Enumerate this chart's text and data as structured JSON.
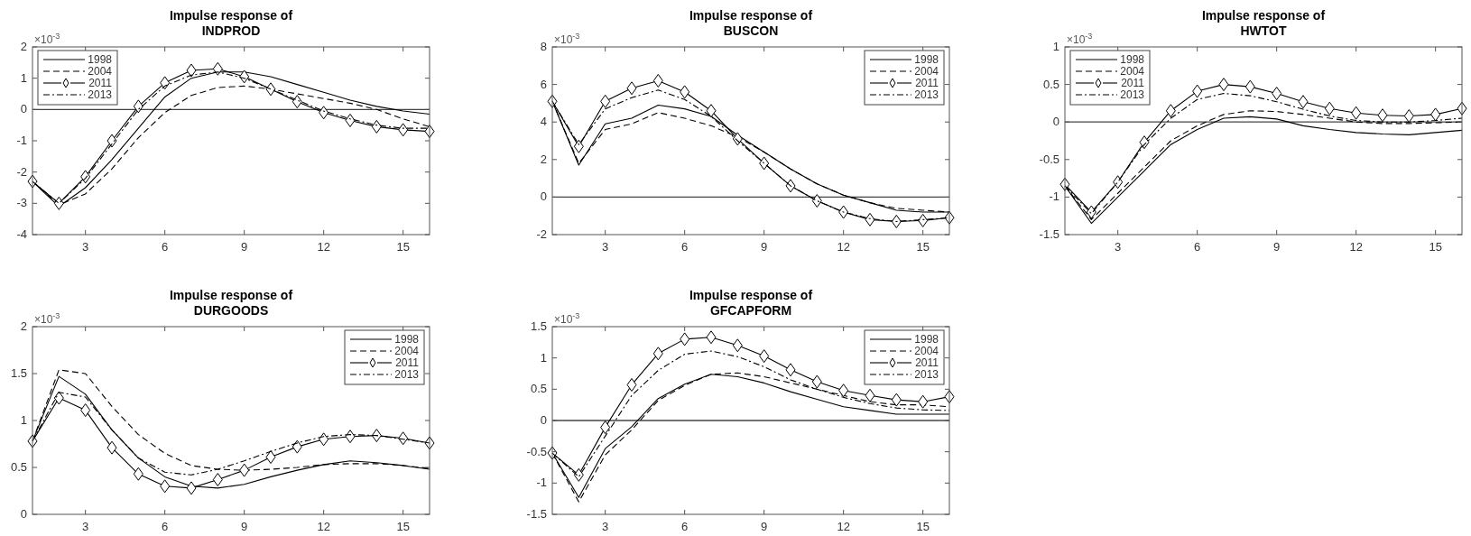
{
  "chart_data": [
    {
      "type": "line",
      "title": "Impulse response of\nINDPROD",
      "annotations": [
        "×10$^{-3}$"
      ],
      "x": [
        1,
        2,
        3,
        4,
        5,
        6,
        7,
        8,
        9,
        10,
        11,
        12,
        13,
        14,
        15,
        16
      ],
      "xlim": [
        1,
        16
      ],
      "xticks": [
        3,
        6,
        9,
        12,
        15
      ],
      "ylim": [
        -4,
        2
      ],
      "yticks": [
        -4,
        -3,
        -2,
        -1,
        0,
        1,
        2
      ],
      "ref_lines": [
        {
          "axis": "y",
          "value": 0,
          "color": "#444444"
        }
      ],
      "legend": "top left",
      "series": [
        {
          "name": "1998",
          "color": "#000000",
          "line_style": "solid",
          "marker": "none",
          "values": [
            -2.3,
            -3.1,
            -2.5,
            -1.6,
            -0.6,
            0.4,
            1.0,
            1.2,
            1.2,
            1.05,
            0.8,
            0.55,
            0.3,
            0.1,
            -0.05,
            -0.15
          ]
        },
        {
          "name": "2004",
          "color": "#000000",
          "line_style": "dashed",
          "marker": "none",
          "values": [
            -2.3,
            -3.05,
            -2.7,
            -1.9,
            -0.9,
            -0.1,
            0.45,
            0.7,
            0.75,
            0.65,
            0.5,
            0.35,
            0.2,
            0.0,
            -0.3,
            -0.55
          ]
        },
        {
          "name": "2011",
          "color": "#000000",
          "line_style": "solid",
          "marker": "diamond",
          "values": [
            -2.3,
            -3.0,
            -2.15,
            -1.0,
            0.1,
            0.85,
            1.25,
            1.3,
            1.05,
            0.65,
            0.25,
            -0.1,
            -0.35,
            -0.55,
            -0.65,
            -0.7
          ]
        },
        {
          "name": "2013",
          "color": "#000000",
          "line_style": "dashdot",
          "marker": "none",
          "values": [
            -2.3,
            -3.0,
            -2.2,
            -1.1,
            0.0,
            0.75,
            1.1,
            1.2,
            1.0,
            0.65,
            0.3,
            -0.05,
            -0.3,
            -0.5,
            -0.6,
            -0.6
          ]
        }
      ]
    },
    {
      "type": "line",
      "title": "Impulse response of\nBUSCON",
      "annotations": [
        "×10$^{-3}$"
      ],
      "x": [
        1,
        2,
        3,
        4,
        5,
        6,
        7,
        8,
        9,
        10,
        11,
        12,
        13,
        14,
        15,
        16
      ],
      "xlim": [
        1,
        16
      ],
      "xticks": [
        3,
        6,
        9,
        12,
        15
      ],
      "ylim": [
        -2,
        8
      ],
      "yticks": [
        -2,
        0,
        2,
        4,
        6,
        8
      ],
      "ref_lines": [
        {
          "axis": "y",
          "value": 0,
          "color": "#444444"
        }
      ],
      "legend": "top right",
      "series": [
        {
          "name": "1998",
          "color": "#000000",
          "line_style": "solid",
          "marker": "none",
          "values": [
            5.1,
            1.7,
            3.9,
            4.2,
            4.9,
            4.7,
            4.3,
            3.3,
            2.4,
            1.5,
            0.7,
            0.1,
            -0.3,
            -0.7,
            -0.8,
            -0.8
          ]
        },
        {
          "name": "2004",
          "color": "#000000",
          "line_style": "dashed",
          "marker": "none",
          "values": [
            5.1,
            1.8,
            3.6,
            3.9,
            4.5,
            4.2,
            3.8,
            3.2,
            2.4,
            1.5,
            0.7,
            0.1,
            -0.3,
            -0.6,
            -0.7,
            -0.8
          ]
        },
        {
          "name": "2011",
          "color": "#000000",
          "line_style": "solid",
          "marker": "diamond",
          "values": [
            5.1,
            2.7,
            5.1,
            5.8,
            6.2,
            5.6,
            4.6,
            3.1,
            1.8,
            0.6,
            -0.2,
            -0.8,
            -1.2,
            -1.3,
            -1.25,
            -1.1
          ]
        },
        {
          "name": "2013",
          "color": "#000000",
          "line_style": "dashdot",
          "marker": "none",
          "values": [
            5.1,
            2.8,
            4.7,
            5.3,
            5.7,
            5.2,
            4.3,
            3.0,
            1.8,
            0.6,
            -0.2,
            -0.8,
            -1.15,
            -1.3,
            -1.2,
            -1.1
          ]
        }
      ]
    },
    {
      "type": "line",
      "title": "Impulse response of\nHWTOT",
      "annotations": [
        "×10$^{-3}$"
      ],
      "x": [
        1,
        2,
        3,
        4,
        5,
        6,
        7,
        8,
        9,
        10,
        11,
        12,
        13,
        14,
        15,
        16
      ],
      "xlim": [
        1,
        16
      ],
      "xticks": [
        3,
        6,
        9,
        12,
        15
      ],
      "ylim": [
        -1.5,
        1
      ],
      "yticks": [
        -1.5,
        -1,
        -0.5,
        0,
        0.5,
        1
      ],
      "ref_lines": [
        {
          "axis": "y",
          "value": 0,
          "color": "#444444"
        }
      ],
      "legend": "top left",
      "series": [
        {
          "name": "1998",
          "color": "#000000",
          "line_style": "solid",
          "marker": "none",
          "values": [
            -0.85,
            -1.35,
            -1.0,
            -0.65,
            -0.3,
            -0.1,
            0.05,
            0.07,
            0.04,
            -0.05,
            -0.1,
            -0.14,
            -0.16,
            -0.17,
            -0.14,
            -0.11
          ]
        },
        {
          "name": "2004",
          "color": "#000000",
          "line_style": "dashed",
          "marker": "none",
          "values": [
            -0.85,
            -1.3,
            -0.95,
            -0.6,
            -0.25,
            -0.05,
            0.1,
            0.15,
            0.14,
            0.1,
            0.05,
            0.0,
            -0.02,
            -0.02,
            -0.01,
            0.0
          ]
        },
        {
          "name": "2011",
          "color": "#000000",
          "line_style": "solid",
          "marker": "diamond",
          "values": [
            -0.83,
            -1.2,
            -0.8,
            -0.27,
            0.15,
            0.41,
            0.5,
            0.47,
            0.38,
            0.27,
            0.18,
            0.12,
            0.09,
            0.08,
            0.1,
            0.18
          ]
        },
        {
          "name": "2013",
          "color": "#000000",
          "line_style": "dashdot",
          "marker": "none",
          "values": [
            -0.85,
            -1.22,
            -0.8,
            -0.3,
            0.05,
            0.3,
            0.38,
            0.35,
            0.27,
            0.17,
            0.08,
            0.02,
            0.0,
            0.0,
            0.02,
            0.05
          ]
        }
      ]
    },
    {
      "type": "line",
      "title": "Impulse response of\nDURGOODS",
      "annotations": [
        "×10$^{-3}$"
      ],
      "x": [
        1,
        2,
        3,
        4,
        5,
        6,
        7,
        8,
        9,
        10,
        11,
        12,
        13,
        14,
        15,
        16
      ],
      "xlim": [
        1,
        16
      ],
      "xticks": [
        3,
        6,
        9,
        12,
        15
      ],
      "ylim": [
        0,
        2
      ],
      "yticks": [
        0,
        0.5,
        1,
        1.5,
        2
      ],
      "legend": "top right",
      "series": [
        {
          "name": "1998",
          "color": "#000000",
          "line_style": "solid",
          "marker": "none",
          "values": [
            0.78,
            1.47,
            1.28,
            0.9,
            0.6,
            0.4,
            0.3,
            0.28,
            0.32,
            0.4,
            0.47,
            0.53,
            0.57,
            0.55,
            0.52,
            0.48
          ]
        },
        {
          "name": "2004",
          "color": "#000000",
          "line_style": "dashed",
          "marker": "none",
          "values": [
            0.78,
            1.54,
            1.5,
            1.15,
            0.85,
            0.65,
            0.52,
            0.48,
            0.47,
            0.48,
            0.5,
            0.53,
            0.54,
            0.54,
            0.52,
            0.49
          ]
        },
        {
          "name": "2011",
          "color": "#000000",
          "line_style": "solid",
          "marker": "diamond",
          "values": [
            0.78,
            1.24,
            1.11,
            0.71,
            0.43,
            0.3,
            0.28,
            0.37,
            0.47,
            0.61,
            0.72,
            0.8,
            0.83,
            0.84,
            0.81,
            0.76
          ]
        },
        {
          "name": "2013",
          "color": "#000000",
          "line_style": "dashdot",
          "marker": "none",
          "values": [
            0.78,
            1.3,
            1.25,
            0.9,
            0.6,
            0.45,
            0.42,
            0.48,
            0.57,
            0.67,
            0.76,
            0.83,
            0.85,
            0.84,
            0.8,
            0.76
          ]
        }
      ]
    },
    {
      "type": "line",
      "title": "Impulse response of\nGFCAPFORM",
      "annotations": [
        "×10$^{-3}$"
      ],
      "x": [
        1,
        2,
        3,
        4,
        5,
        6,
        7,
        8,
        9,
        10,
        11,
        12,
        13,
        14,
        15,
        16
      ],
      "xlim": [
        1,
        16
      ],
      "xticks": [
        3,
        6,
        9,
        12,
        15
      ],
      "ylim": [
        -1.5,
        1.5
      ],
      "yticks": [
        -1.5,
        -1,
        -0.5,
        0,
        0.5,
        1,
        1.5
      ],
      "ref_lines": [
        {
          "axis": "y",
          "value": 0,
          "color": "#444444"
        }
      ],
      "legend": "top right",
      "series": [
        {
          "name": "1998",
          "color": "#000000",
          "line_style": "solid",
          "marker": "none",
          "values": [
            -0.52,
            -1.23,
            -0.45,
            -0.1,
            0.35,
            0.58,
            0.74,
            0.7,
            0.6,
            0.46,
            0.34,
            0.22,
            0.16,
            0.1,
            0.1,
            0.1
          ]
        },
        {
          "name": "2004",
          "color": "#000000",
          "line_style": "dashed",
          "marker": "none",
          "values": [
            -0.52,
            -1.3,
            -0.55,
            -0.15,
            0.32,
            0.56,
            0.74,
            0.76,
            0.7,
            0.6,
            0.5,
            0.4,
            0.3,
            0.25,
            0.25,
            0.22
          ]
        },
        {
          "name": "2011",
          "color": "#000000",
          "line_style": "solid",
          "marker": "diamond",
          "values": [
            -0.52,
            -0.87,
            -0.11,
            0.57,
            1.07,
            1.3,
            1.33,
            1.2,
            1.03,
            0.81,
            0.62,
            0.48,
            0.4,
            0.33,
            0.3,
            0.38
          ]
        },
        {
          "name": "2013",
          "color": "#000000",
          "line_style": "dashdot",
          "marker": "none",
          "values": [
            -0.52,
            -0.9,
            -0.25,
            0.4,
            0.8,
            1.06,
            1.11,
            1.02,
            0.86,
            0.65,
            0.5,
            0.37,
            0.27,
            0.2,
            0.17,
            0.16
          ]
        }
      ]
    }
  ]
}
